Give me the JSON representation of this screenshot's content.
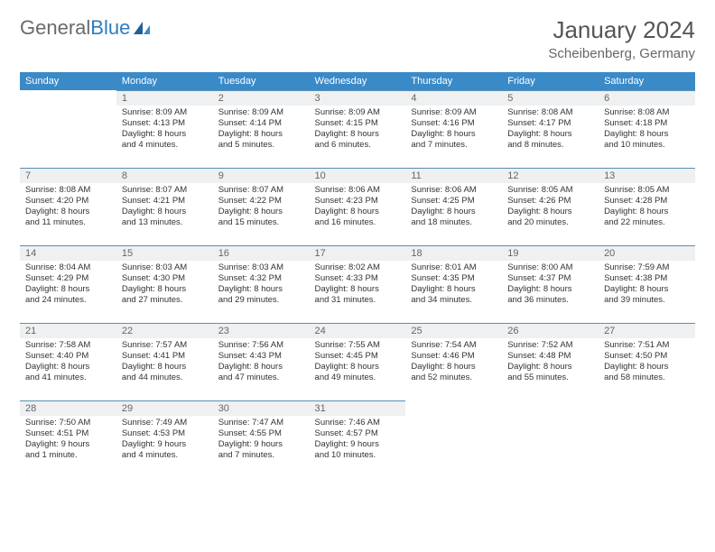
{
  "logo": {
    "text_a": "General",
    "text_b": "Blue"
  },
  "title": "January 2024",
  "location": "Scheibenberg, Germany",
  "colors": {
    "header_bg": "#3a8ac8",
    "header_text": "#ffffff",
    "daynum_bg": "#eef0f1",
    "daynum_border": "#5a8fb5",
    "body_bg": "#ffffff",
    "text": "#333333",
    "logo_gray": "#6a6a6a",
    "logo_blue": "#2c7cc0"
  },
  "weekdays": [
    "Sunday",
    "Monday",
    "Tuesday",
    "Wednesday",
    "Thursday",
    "Friday",
    "Saturday"
  ],
  "weeks": [
    [
      null,
      {
        "n": "1",
        "sr": "Sunrise: 8:09 AM",
        "ss": "Sunset: 4:13 PM",
        "d1": "Daylight: 8 hours",
        "d2": "and 4 minutes."
      },
      {
        "n": "2",
        "sr": "Sunrise: 8:09 AM",
        "ss": "Sunset: 4:14 PM",
        "d1": "Daylight: 8 hours",
        "d2": "and 5 minutes."
      },
      {
        "n": "3",
        "sr": "Sunrise: 8:09 AM",
        "ss": "Sunset: 4:15 PM",
        "d1": "Daylight: 8 hours",
        "d2": "and 6 minutes."
      },
      {
        "n": "4",
        "sr": "Sunrise: 8:09 AM",
        "ss": "Sunset: 4:16 PM",
        "d1": "Daylight: 8 hours",
        "d2": "and 7 minutes."
      },
      {
        "n": "5",
        "sr": "Sunrise: 8:08 AM",
        "ss": "Sunset: 4:17 PM",
        "d1": "Daylight: 8 hours",
        "d2": "and 8 minutes."
      },
      {
        "n": "6",
        "sr": "Sunrise: 8:08 AM",
        "ss": "Sunset: 4:18 PM",
        "d1": "Daylight: 8 hours",
        "d2": "and 10 minutes."
      }
    ],
    [
      {
        "n": "7",
        "sr": "Sunrise: 8:08 AM",
        "ss": "Sunset: 4:20 PM",
        "d1": "Daylight: 8 hours",
        "d2": "and 11 minutes."
      },
      {
        "n": "8",
        "sr": "Sunrise: 8:07 AM",
        "ss": "Sunset: 4:21 PM",
        "d1": "Daylight: 8 hours",
        "d2": "and 13 minutes."
      },
      {
        "n": "9",
        "sr": "Sunrise: 8:07 AM",
        "ss": "Sunset: 4:22 PM",
        "d1": "Daylight: 8 hours",
        "d2": "and 15 minutes."
      },
      {
        "n": "10",
        "sr": "Sunrise: 8:06 AM",
        "ss": "Sunset: 4:23 PM",
        "d1": "Daylight: 8 hours",
        "d2": "and 16 minutes."
      },
      {
        "n": "11",
        "sr": "Sunrise: 8:06 AM",
        "ss": "Sunset: 4:25 PM",
        "d1": "Daylight: 8 hours",
        "d2": "and 18 minutes."
      },
      {
        "n": "12",
        "sr": "Sunrise: 8:05 AM",
        "ss": "Sunset: 4:26 PM",
        "d1": "Daylight: 8 hours",
        "d2": "and 20 minutes."
      },
      {
        "n": "13",
        "sr": "Sunrise: 8:05 AM",
        "ss": "Sunset: 4:28 PM",
        "d1": "Daylight: 8 hours",
        "d2": "and 22 minutes."
      }
    ],
    [
      {
        "n": "14",
        "sr": "Sunrise: 8:04 AM",
        "ss": "Sunset: 4:29 PM",
        "d1": "Daylight: 8 hours",
        "d2": "and 24 minutes."
      },
      {
        "n": "15",
        "sr": "Sunrise: 8:03 AM",
        "ss": "Sunset: 4:30 PM",
        "d1": "Daylight: 8 hours",
        "d2": "and 27 minutes."
      },
      {
        "n": "16",
        "sr": "Sunrise: 8:03 AM",
        "ss": "Sunset: 4:32 PM",
        "d1": "Daylight: 8 hours",
        "d2": "and 29 minutes."
      },
      {
        "n": "17",
        "sr": "Sunrise: 8:02 AM",
        "ss": "Sunset: 4:33 PM",
        "d1": "Daylight: 8 hours",
        "d2": "and 31 minutes."
      },
      {
        "n": "18",
        "sr": "Sunrise: 8:01 AM",
        "ss": "Sunset: 4:35 PM",
        "d1": "Daylight: 8 hours",
        "d2": "and 34 minutes."
      },
      {
        "n": "19",
        "sr": "Sunrise: 8:00 AM",
        "ss": "Sunset: 4:37 PM",
        "d1": "Daylight: 8 hours",
        "d2": "and 36 minutes."
      },
      {
        "n": "20",
        "sr": "Sunrise: 7:59 AM",
        "ss": "Sunset: 4:38 PM",
        "d1": "Daylight: 8 hours",
        "d2": "and 39 minutes."
      }
    ],
    [
      {
        "n": "21",
        "sr": "Sunrise: 7:58 AM",
        "ss": "Sunset: 4:40 PM",
        "d1": "Daylight: 8 hours",
        "d2": "and 41 minutes."
      },
      {
        "n": "22",
        "sr": "Sunrise: 7:57 AM",
        "ss": "Sunset: 4:41 PM",
        "d1": "Daylight: 8 hours",
        "d2": "and 44 minutes."
      },
      {
        "n": "23",
        "sr": "Sunrise: 7:56 AM",
        "ss": "Sunset: 4:43 PM",
        "d1": "Daylight: 8 hours",
        "d2": "and 47 minutes."
      },
      {
        "n": "24",
        "sr": "Sunrise: 7:55 AM",
        "ss": "Sunset: 4:45 PM",
        "d1": "Daylight: 8 hours",
        "d2": "and 49 minutes."
      },
      {
        "n": "25",
        "sr": "Sunrise: 7:54 AM",
        "ss": "Sunset: 4:46 PM",
        "d1": "Daylight: 8 hours",
        "d2": "and 52 minutes."
      },
      {
        "n": "26",
        "sr": "Sunrise: 7:52 AM",
        "ss": "Sunset: 4:48 PM",
        "d1": "Daylight: 8 hours",
        "d2": "and 55 minutes."
      },
      {
        "n": "27",
        "sr": "Sunrise: 7:51 AM",
        "ss": "Sunset: 4:50 PM",
        "d1": "Daylight: 8 hours",
        "d2": "and 58 minutes."
      }
    ],
    [
      {
        "n": "28",
        "sr": "Sunrise: 7:50 AM",
        "ss": "Sunset: 4:51 PM",
        "d1": "Daylight: 9 hours",
        "d2": "and 1 minute."
      },
      {
        "n": "29",
        "sr": "Sunrise: 7:49 AM",
        "ss": "Sunset: 4:53 PM",
        "d1": "Daylight: 9 hours",
        "d2": "and 4 minutes."
      },
      {
        "n": "30",
        "sr": "Sunrise: 7:47 AM",
        "ss": "Sunset: 4:55 PM",
        "d1": "Daylight: 9 hours",
        "d2": "and 7 minutes."
      },
      {
        "n": "31",
        "sr": "Sunrise: 7:46 AM",
        "ss": "Sunset: 4:57 PM",
        "d1": "Daylight: 9 hours",
        "d2": "and 10 minutes."
      },
      null,
      null,
      null
    ]
  ]
}
